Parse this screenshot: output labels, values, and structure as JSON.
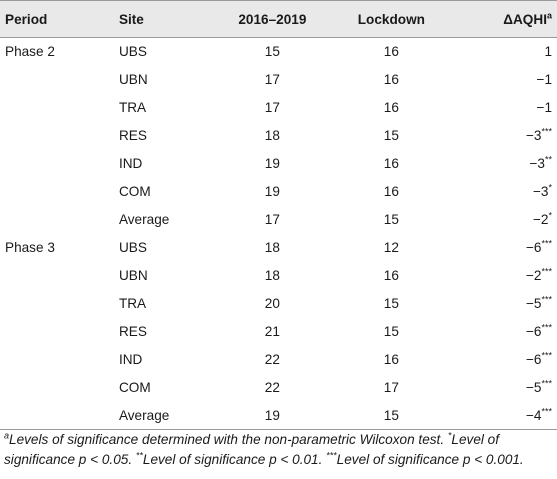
{
  "table": {
    "headers": {
      "period": "Period",
      "site": "Site",
      "years": "2016–2019",
      "lockdown": "Lockdown",
      "delta": "ΔAQHI",
      "delta_sup": "a"
    },
    "rows": [
      {
        "period": "Phase 2",
        "site": "UBS",
        "years": "15",
        "lockdown": "16",
        "delta": "1",
        "sig": ""
      },
      {
        "period": "",
        "site": "UBN",
        "years": "17",
        "lockdown": "16",
        "delta": "−1",
        "sig": ""
      },
      {
        "period": "",
        "site": "TRA",
        "years": "17",
        "lockdown": "16",
        "delta": "−1",
        "sig": ""
      },
      {
        "period": "",
        "site": "RES",
        "years": "18",
        "lockdown": "15",
        "delta": "−3",
        "sig": "***"
      },
      {
        "period": "",
        "site": "IND",
        "years": "19",
        "lockdown": "16",
        "delta": "−3",
        "sig": "**"
      },
      {
        "period": "",
        "site": "COM",
        "years": "19",
        "lockdown": "16",
        "delta": "−3",
        "sig": "*"
      },
      {
        "period": "",
        "site": "Average",
        "years": "17",
        "lockdown": "15",
        "delta": "−2",
        "sig": "*"
      },
      {
        "period": "Phase 3",
        "site": "UBS",
        "years": "18",
        "lockdown": "12",
        "delta": "−6",
        "sig": "***"
      },
      {
        "period": "",
        "site": "UBN",
        "years": "18",
        "lockdown": "16",
        "delta": "−2",
        "sig": "***"
      },
      {
        "period": "",
        "site": "TRA",
        "years": "20",
        "lockdown": "15",
        "delta": "−5",
        "sig": "***"
      },
      {
        "period": "",
        "site": "RES",
        "years": "21",
        "lockdown": "15",
        "delta": "−6",
        "sig": "***"
      },
      {
        "period": "",
        "site": "IND",
        "years": "22",
        "lockdown": "16",
        "delta": "−6",
        "sig": "***"
      },
      {
        "period": "",
        "site": "COM",
        "years": "22",
        "lockdown": "17",
        "delta": "−5",
        "sig": "***"
      },
      {
        "period": "",
        "site": "Average",
        "years": "19",
        "lockdown": "15",
        "delta": "−4",
        "sig": "***"
      }
    ]
  },
  "footnote": {
    "a_mark": "a",
    "a_text": "Levels of significance determined with the non-parametric Wilcoxon test. ",
    "s1_mark": "*",
    "s1_text": "Level of significance p < 0.05. ",
    "s2_mark": "**",
    "s2_text": "Level of significance p < 0.01. ",
    "s3_mark": "***",
    "s3_text": "Level of significance p < 0.001."
  }
}
